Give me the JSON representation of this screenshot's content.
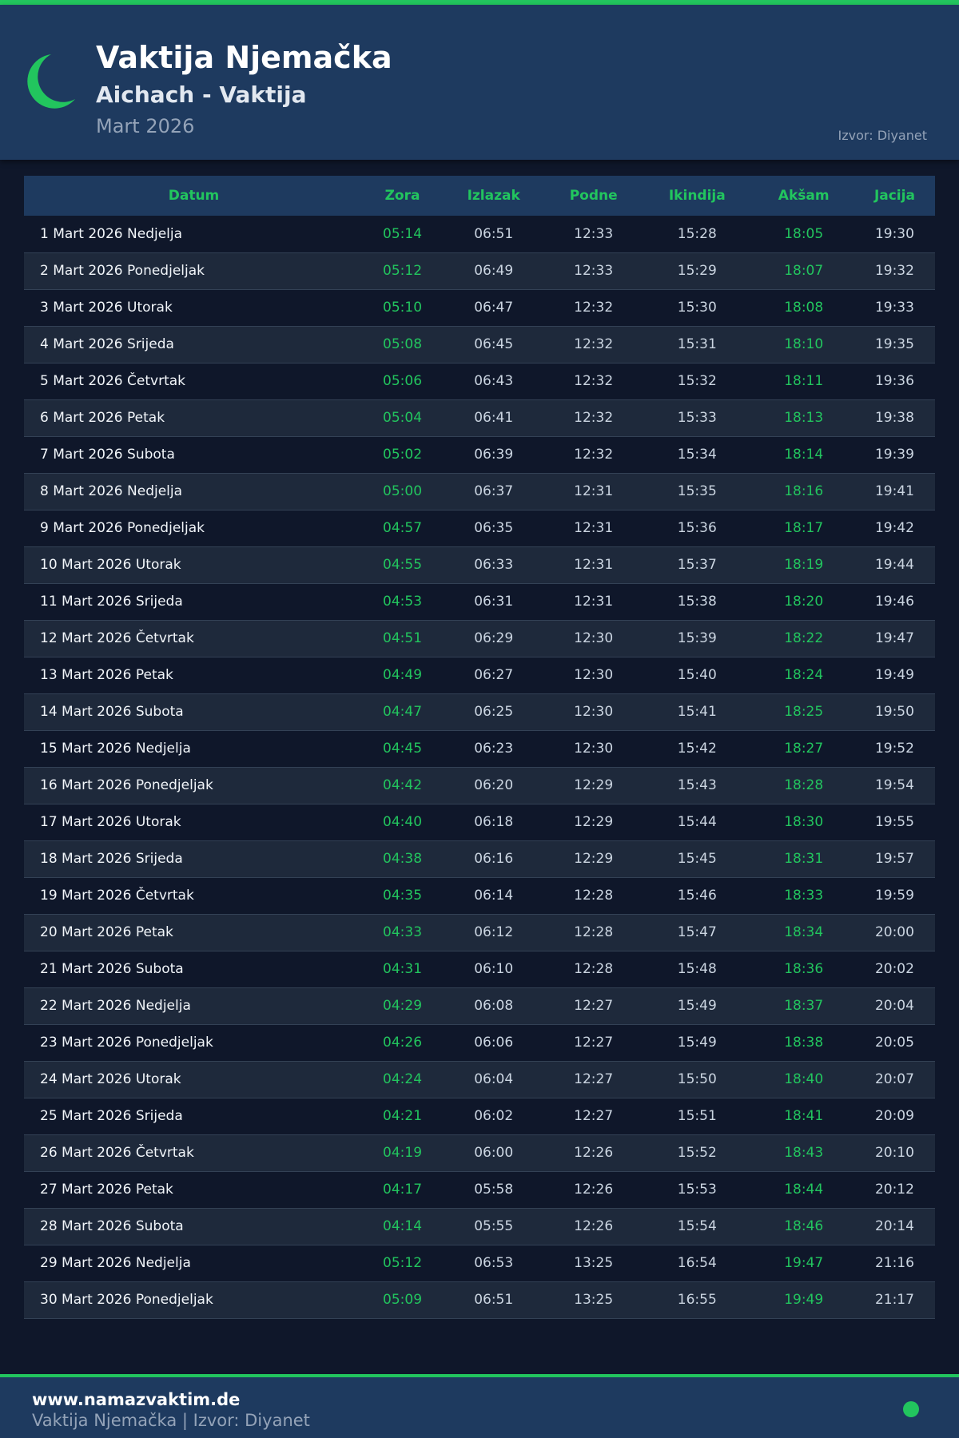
{
  "header": {
    "title": "Vaktija Njemačka",
    "subtitle": "Aichach - Vaktija",
    "month": "Mart 2026",
    "source": "Izvor: Diyanet",
    "icon": "crescent-moon-icon"
  },
  "colors": {
    "accent": "#22c55e",
    "header_bg": "#1e3a5f",
    "page_bg": "#0f172a"
  },
  "table": {
    "columns": [
      "Datum",
      "Zora",
      "Izlazak",
      "Podne",
      "Ikindija",
      "Akšam",
      "Jacija"
    ],
    "rows": [
      [
        "1 Mart 2026 Nedjelja",
        "05:14",
        "06:51",
        "12:33",
        "15:28",
        "18:05",
        "19:30"
      ],
      [
        "2 Mart 2026 Ponedjeljak",
        "05:12",
        "06:49",
        "12:33",
        "15:29",
        "18:07",
        "19:32"
      ],
      [
        "3 Mart 2026 Utorak",
        "05:10",
        "06:47",
        "12:32",
        "15:30",
        "18:08",
        "19:33"
      ],
      [
        "4 Mart 2026 Srijeda",
        "05:08",
        "06:45",
        "12:32",
        "15:31",
        "18:10",
        "19:35"
      ],
      [
        "5 Mart 2026 Četvrtak",
        "05:06",
        "06:43",
        "12:32",
        "15:32",
        "18:11",
        "19:36"
      ],
      [
        "6 Mart 2026 Petak",
        "05:04",
        "06:41",
        "12:32",
        "15:33",
        "18:13",
        "19:38"
      ],
      [
        "7 Mart 2026 Subota",
        "05:02",
        "06:39",
        "12:32",
        "15:34",
        "18:14",
        "19:39"
      ],
      [
        "8 Mart 2026 Nedjelja",
        "05:00",
        "06:37",
        "12:31",
        "15:35",
        "18:16",
        "19:41"
      ],
      [
        "9 Mart 2026 Ponedjeljak",
        "04:57",
        "06:35",
        "12:31",
        "15:36",
        "18:17",
        "19:42"
      ],
      [
        "10 Mart 2026 Utorak",
        "04:55",
        "06:33",
        "12:31",
        "15:37",
        "18:19",
        "19:44"
      ],
      [
        "11 Mart 2026 Srijeda",
        "04:53",
        "06:31",
        "12:31",
        "15:38",
        "18:20",
        "19:46"
      ],
      [
        "12 Mart 2026 Četvrtak",
        "04:51",
        "06:29",
        "12:30",
        "15:39",
        "18:22",
        "19:47"
      ],
      [
        "13 Mart 2026 Petak",
        "04:49",
        "06:27",
        "12:30",
        "15:40",
        "18:24",
        "19:49"
      ],
      [
        "14 Mart 2026 Subota",
        "04:47",
        "06:25",
        "12:30",
        "15:41",
        "18:25",
        "19:50"
      ],
      [
        "15 Mart 2026 Nedjelja",
        "04:45",
        "06:23",
        "12:30",
        "15:42",
        "18:27",
        "19:52"
      ],
      [
        "16 Mart 2026 Ponedjeljak",
        "04:42",
        "06:20",
        "12:29",
        "15:43",
        "18:28",
        "19:54"
      ],
      [
        "17 Mart 2026 Utorak",
        "04:40",
        "06:18",
        "12:29",
        "15:44",
        "18:30",
        "19:55"
      ],
      [
        "18 Mart 2026 Srijeda",
        "04:38",
        "06:16",
        "12:29",
        "15:45",
        "18:31",
        "19:57"
      ],
      [
        "19 Mart 2026 Četvrtak",
        "04:35",
        "06:14",
        "12:28",
        "15:46",
        "18:33",
        "19:59"
      ],
      [
        "20 Mart 2026 Petak",
        "04:33",
        "06:12",
        "12:28",
        "15:47",
        "18:34",
        "20:00"
      ],
      [
        "21 Mart 2026 Subota",
        "04:31",
        "06:10",
        "12:28",
        "15:48",
        "18:36",
        "20:02"
      ],
      [
        "22 Mart 2026 Nedjelja",
        "04:29",
        "06:08",
        "12:27",
        "15:49",
        "18:37",
        "20:04"
      ],
      [
        "23 Mart 2026 Ponedjeljak",
        "04:26",
        "06:06",
        "12:27",
        "15:49",
        "18:38",
        "20:05"
      ],
      [
        "24 Mart 2026 Utorak",
        "04:24",
        "06:04",
        "12:27",
        "15:50",
        "18:40",
        "20:07"
      ],
      [
        "25 Mart 2026 Srijeda",
        "04:21",
        "06:02",
        "12:27",
        "15:51",
        "18:41",
        "20:09"
      ],
      [
        "26 Mart 2026 Četvrtak",
        "04:19",
        "06:00",
        "12:26",
        "15:52",
        "18:43",
        "20:10"
      ],
      [
        "27 Mart 2026 Petak",
        "04:17",
        "05:58",
        "12:26",
        "15:53",
        "18:44",
        "20:12"
      ],
      [
        "28 Mart 2026 Subota",
        "04:14",
        "05:55",
        "12:26",
        "15:54",
        "18:46",
        "20:14"
      ],
      [
        "29 Mart 2026 Nedjelja",
        "05:12",
        "06:53",
        "13:25",
        "16:54",
        "19:47",
        "21:16"
      ],
      [
        "30 Mart 2026 Ponedjeljak",
        "05:09",
        "06:51",
        "13:25",
        "16:55",
        "19:49",
        "21:17"
      ]
    ]
  },
  "footer": {
    "url": "www.namazvaktim.de",
    "text": "Vaktija Njemačka | Izvor: Diyanet"
  }
}
